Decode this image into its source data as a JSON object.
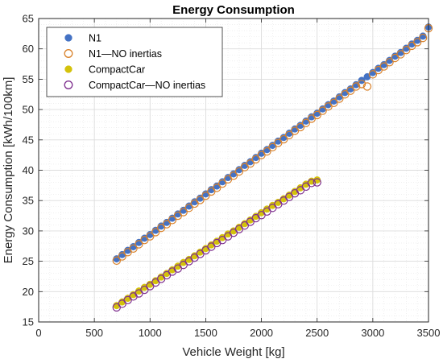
{
  "chart_data": {
    "type": "scatter",
    "title": "Energy Consumption",
    "xlabel": "Vehicle Weight [kg]",
    "ylabel": "Energy Consumption [kWh/100km]",
    "xlim": [
      0,
      3500
    ],
    "ylim": [
      15,
      65
    ],
    "xticks": [
      0,
      500,
      1000,
      1500,
      2000,
      2500,
      3000,
      3500
    ],
    "yticks": [
      15,
      20,
      25,
      30,
      35,
      40,
      45,
      50,
      55,
      60,
      65
    ],
    "grid": "major and minor",
    "legend_position": "top-left",
    "series": [
      {
        "name": "N1",
        "marker": "filled-circle",
        "color": "#4472C4",
        "edge_color": "#4472C4",
        "x": [
          700,
          750,
          800,
          850,
          900,
          950,
          1000,
          1050,
          1100,
          1150,
          1200,
          1250,
          1300,
          1350,
          1400,
          1450,
          1500,
          1550,
          1600,
          1650,
          1700,
          1750,
          1800,
          1850,
          1900,
          1950,
          2000,
          2050,
          2100,
          2150,
          2200,
          2250,
          2300,
          2350,
          2400,
          2450,
          2500,
          2550,
          2600,
          2650,
          2700,
          2750,
          2800,
          2850,
          2900,
          2950,
          3000,
          3050,
          3100,
          3150,
          3200,
          3250,
          3300,
          3350,
          3400,
          3450,
          3500
        ],
        "y": [
          25.4,
          26.1,
          26.8,
          27.4,
          28.1,
          28.8,
          29.4,
          30.1,
          30.8,
          31.4,
          32.1,
          32.8,
          33.4,
          34.1,
          34.8,
          35.4,
          36.1,
          36.8,
          37.4,
          38.1,
          38.8,
          39.4,
          40.1,
          40.8,
          41.4,
          42.1,
          42.8,
          43.4,
          44.1,
          44.8,
          45.4,
          46.1,
          46.8,
          47.4,
          48.1,
          48.8,
          49.4,
          50.1,
          50.8,
          51.4,
          52.1,
          52.8,
          53.4,
          54.1,
          54.8,
          55.4,
          56.1,
          56.8,
          57.4,
          58.1,
          58.8,
          59.4,
          60.1,
          60.8,
          61.4,
          62.1,
          63.6
        ]
      },
      {
        "name": "N1—NO inertias",
        "marker": "open-circle",
        "color": "none",
        "edge_color": "#D9822B",
        "x": [
          700,
          750,
          800,
          850,
          900,
          950,
          1000,
          1050,
          1100,
          1150,
          1200,
          1250,
          1300,
          1350,
          1400,
          1450,
          1500,
          1550,
          1600,
          1650,
          1700,
          1750,
          1800,
          1850,
          1900,
          1950,
          2000,
          2050,
          2100,
          2150,
          2200,
          2250,
          2300,
          2350,
          2400,
          2450,
          2500,
          2550,
          2600,
          2650,
          2700,
          2750,
          2800,
          2850,
          2900,
          2950,
          3000,
          3050,
          3100,
          3150,
          3200,
          3250,
          3300,
          3350,
          3400,
          3450,
          3500
        ],
        "y": [
          25.1,
          25.8,
          26.5,
          27.1,
          27.8,
          28.5,
          29.1,
          29.8,
          30.5,
          31.1,
          31.8,
          32.5,
          33.1,
          33.8,
          34.5,
          35.1,
          35.8,
          36.5,
          37.1,
          37.8,
          38.5,
          39.1,
          39.8,
          40.5,
          41.1,
          41.8,
          42.5,
          43.1,
          43.8,
          44.5,
          45.1,
          45.8,
          46.5,
          47.1,
          47.8,
          48.5,
          49.1,
          49.8,
          50.5,
          51.1,
          51.8,
          52.5,
          53.1,
          53.8,
          54.2,
          53.8,
          55.8,
          56.5,
          57.1,
          57.8,
          58.5,
          59.1,
          59.8,
          60.5,
          61.1,
          61.8,
          63.4
        ]
      },
      {
        "name": "CompactCar",
        "marker": "filled-circle",
        "color": "#D4C20B",
        "edge_color": "#D4C20B",
        "x": [
          700,
          750,
          800,
          850,
          900,
          950,
          1000,
          1050,
          1100,
          1150,
          1200,
          1250,
          1300,
          1350,
          1400,
          1450,
          1500,
          1550,
          1600,
          1650,
          1700,
          1750,
          1800,
          1850,
          1900,
          1950,
          2000,
          2050,
          2100,
          2150,
          2200,
          2250,
          2300,
          2350,
          2400,
          2450,
          2500
        ],
        "y": [
          17.7,
          18.3,
          18.9,
          19.5,
          20.1,
          20.7,
          21.2,
          21.8,
          22.4,
          23.0,
          23.6,
          24.2,
          24.8,
          25.3,
          25.9,
          26.5,
          27.1,
          27.7,
          28.3,
          28.9,
          29.5,
          30.0,
          30.6,
          31.2,
          31.8,
          32.4,
          33.0,
          33.6,
          34.2,
          34.7,
          35.3,
          35.9,
          36.5,
          37.1,
          37.7,
          38.2,
          38.4
        ]
      },
      {
        "name": "CompactCar—NO inertias",
        "marker": "open-circle",
        "color": "none",
        "edge_color": "#7E2F8E",
        "x": [
          700,
          750,
          800,
          850,
          900,
          950,
          1000,
          1050,
          1100,
          1150,
          1200,
          1250,
          1300,
          1350,
          1400,
          1450,
          1500,
          1550,
          1600,
          1650,
          1700,
          1750,
          1800,
          1850,
          1900,
          1950,
          2000,
          2050,
          2100,
          2150,
          2200,
          2250,
          2300,
          2350,
          2400,
          2450,
          2500
        ],
        "y": [
          17.4,
          18.0,
          18.6,
          19.2,
          19.7,
          20.3,
          20.9,
          21.5,
          22.1,
          22.7,
          23.3,
          23.8,
          24.4,
          25.0,
          25.6,
          26.2,
          26.8,
          27.4,
          28.0,
          28.5,
          29.1,
          29.7,
          30.3,
          30.9,
          31.5,
          32.1,
          32.6,
          33.2,
          33.8,
          34.4,
          35.0,
          35.6,
          36.2,
          36.7,
          37.3,
          37.9,
          38.0
        ]
      }
    ]
  }
}
